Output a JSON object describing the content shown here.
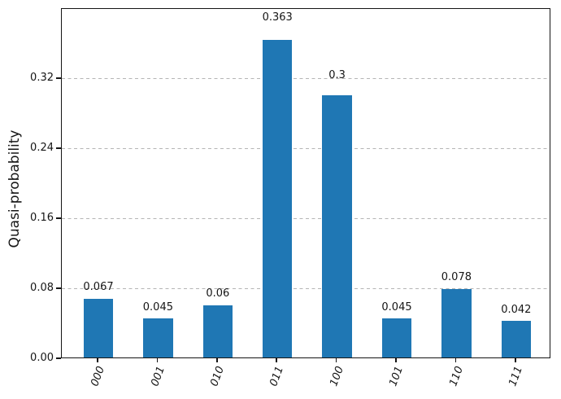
{
  "chart_data": {
    "type": "bar",
    "title": "",
    "xlabel": "",
    "ylabel": "Quasi-probability",
    "categories": [
      "000",
      "001",
      "010",
      "011",
      "100",
      "101",
      "110",
      "111"
    ],
    "values": [
      0.067,
      0.045,
      0.06,
      0.363,
      0.3,
      0.045,
      0.078,
      0.042
    ],
    "value_labels": [
      "0.067",
      "0.045",
      "0.06",
      "0.363",
      "0.3",
      "0.045",
      "0.078",
      "0.042"
    ],
    "ylim": [
      0,
      0.4
    ],
    "yticks": [
      0.0,
      0.08,
      0.16,
      0.24,
      0.32
    ],
    "ytick_labels": [
      "0.00",
      "0.08",
      "0.16",
      "0.24",
      "0.32"
    ],
    "grid": "horizontal-dashed",
    "legend_position": "none",
    "bar_color": "#1f77b4",
    "grid_color": "#b5b5b5",
    "spine_color": "#151515",
    "text_color": "#151515"
  }
}
